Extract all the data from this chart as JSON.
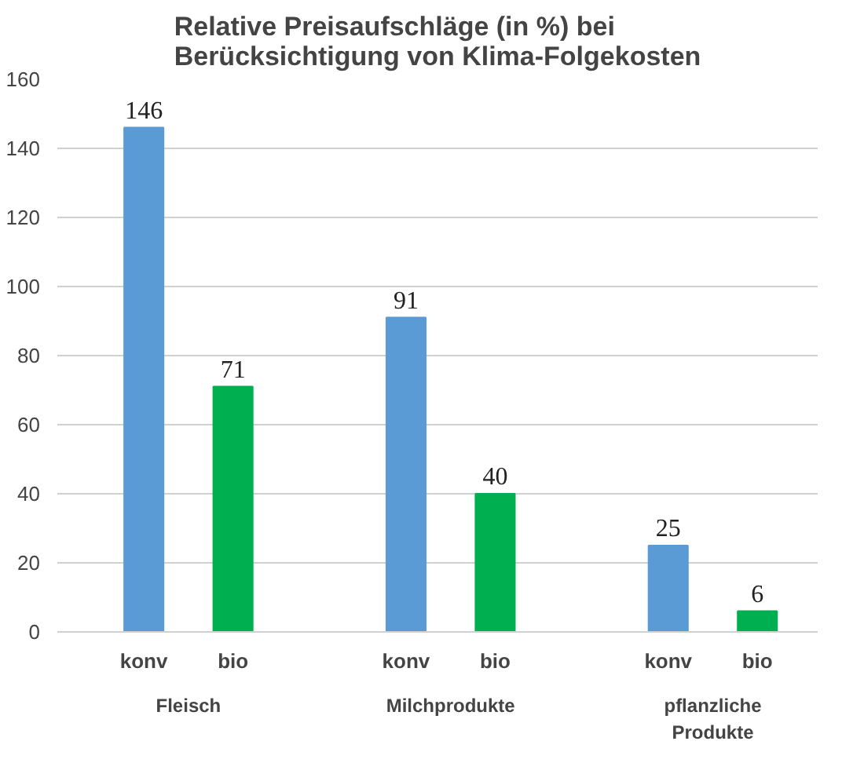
{
  "chart_data": {
    "type": "bar",
    "title": "Relative Preisaufschläge (in %) bei\nBerücksichtigung von Klima-Folgekosten",
    "categories": [
      "Fleisch",
      "Milchprodukte",
      "pflanzliche Produkte"
    ],
    "series": [
      {
        "name": "konv",
        "color": "#5b9bd5",
        "values": [
          146,
          91,
          25
        ]
      },
      {
        "name": "bio",
        "color": "#00b050",
        "values": [
          71,
          40,
          6
        ]
      }
    ],
    "ylim": [
      0,
      160
    ],
    "yticks": [
      0,
      20,
      40,
      60,
      80,
      100,
      120,
      140,
      160
    ],
    "grid": "y",
    "data_labels": true
  }
}
